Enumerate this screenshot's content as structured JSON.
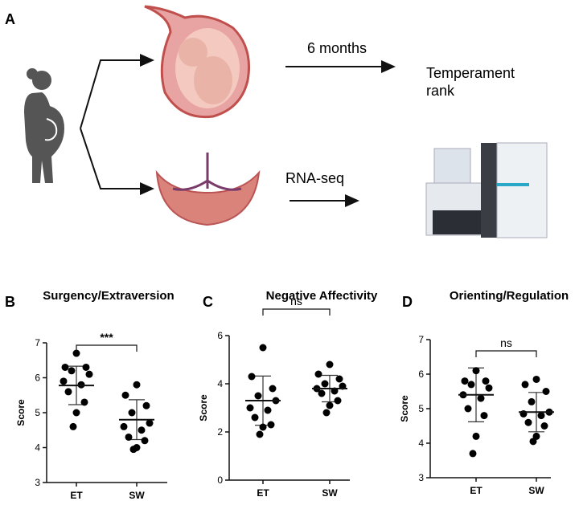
{
  "panel_a": {
    "label": "A",
    "arrow_top": "6 months",
    "outcome": [
      "Temperament",
      "rank"
    ],
    "arrow_bottom": "RNA-seq"
  },
  "chart_data": [
    {
      "type": "scatter",
      "panel": "B",
      "title": "Surgency/Extraversion",
      "ylabel": "Score",
      "categories": [
        "ET",
        "SW"
      ],
      "ylim": [
        3,
        7
      ],
      "yticks": [
        3,
        4,
        5,
        6,
        7
      ],
      "color": "#000000",
      "annotation": "***",
      "series": [
        {
          "name": "ET",
          "values": [
            6.7,
            6.3,
            6.3,
            6.2,
            6.1,
            5.9,
            5.8,
            5.6,
            5.3,
            5.0,
            4.6
          ],
          "mean": 5.78,
          "sd": 0.55
        },
        {
          "name": "SW",
          "values": [
            5.8,
            5.5,
            5.2,
            5.0,
            4.7,
            4.6,
            4.5,
            4.3,
            4.2,
            4.0,
            3.95
          ],
          "mean": 4.8,
          "sd": 0.57
        }
      ]
    },
    {
      "type": "scatter",
      "panel": "C",
      "title": "Negative Affectivity",
      "ylabel": "Score",
      "categories": [
        "ET",
        "SW"
      ],
      "ylim": [
        0,
        6
      ],
      "yticks": [
        0,
        2,
        4,
        6
      ],
      "color": "#000000",
      "annotation": "ns",
      "series": [
        {
          "name": "ET",
          "values": [
            5.5,
            4.3,
            3.8,
            3.5,
            3.3,
            3.0,
            2.9,
            2.6,
            2.3,
            2.2,
            1.9
          ],
          "mean": 3.3,
          "sd": 1.02
        },
        {
          "name": "SW",
          "values": [
            4.8,
            4.4,
            4.2,
            4.0,
            3.9,
            3.8,
            3.7,
            3.6,
            3.3,
            3.1,
            2.8
          ],
          "mean": 3.8,
          "sd": 0.55
        }
      ]
    },
    {
      "type": "scatter",
      "panel": "D",
      "title": "Orienting/Regulation",
      "ylabel": "Score",
      "categories": [
        "ET",
        "SW"
      ],
      "ylim": [
        3,
        7
      ],
      "yticks": [
        3,
        4,
        5,
        6,
        7
      ],
      "color": "#000000",
      "annotation": "ns",
      "series": [
        {
          "name": "ET",
          "values": [
            6.1,
            5.8,
            5.8,
            5.7,
            5.6,
            5.4,
            5.3,
            5.0,
            4.8,
            4.2,
            3.7
          ],
          "mean": 5.4,
          "sd": 0.78
        },
        {
          "name": "SW",
          "values": [
            5.85,
            5.7,
            5.5,
            5.2,
            4.9,
            4.85,
            4.8,
            4.6,
            4.5,
            4.2,
            4.05
          ],
          "mean": 4.9,
          "sd": 0.57
        }
      ]
    }
  ]
}
